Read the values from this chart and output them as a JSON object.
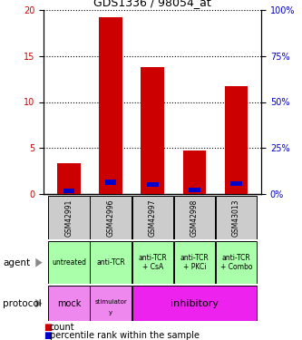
{
  "title": "GDS1336 / 98054_at",
  "samples": [
    "GSM42991",
    "GSM42996",
    "GSM42997",
    "GSM42998",
    "GSM43013"
  ],
  "counts": [
    3.3,
    19.2,
    13.8,
    4.7,
    11.7
  ],
  "percentile_ranks": [
    1.4,
    6.3,
    5.2,
    2.2,
    5.6
  ],
  "ylim_left": [
    0,
    20
  ],
  "ylim_right": [
    0,
    100
  ],
  "yticks_left": [
    0,
    5,
    10,
    15,
    20
  ],
  "yticks_right": [
    0,
    25,
    50,
    75,
    100
  ],
  "bar_color": "#cc0000",
  "pct_color": "#0000cc",
  "left_tick_color": "#cc0000",
  "right_tick_color": "#0000cc",
  "agent_labels": [
    "untreated",
    "anti-TCR",
    "anti-TCR\n+ CsA",
    "anti-TCR\n+ PKCi",
    "anti-TCR\n+ Combo"
  ],
  "agent_bg": "#aaffaa",
  "protocol_mock_bg": "#ee88ee",
  "protocol_stim_bg": "#ee88ee",
  "protocol_inhib_bg": "#ee22ee",
  "sample_bg": "#cccccc",
  "bar_width": 0.55
}
